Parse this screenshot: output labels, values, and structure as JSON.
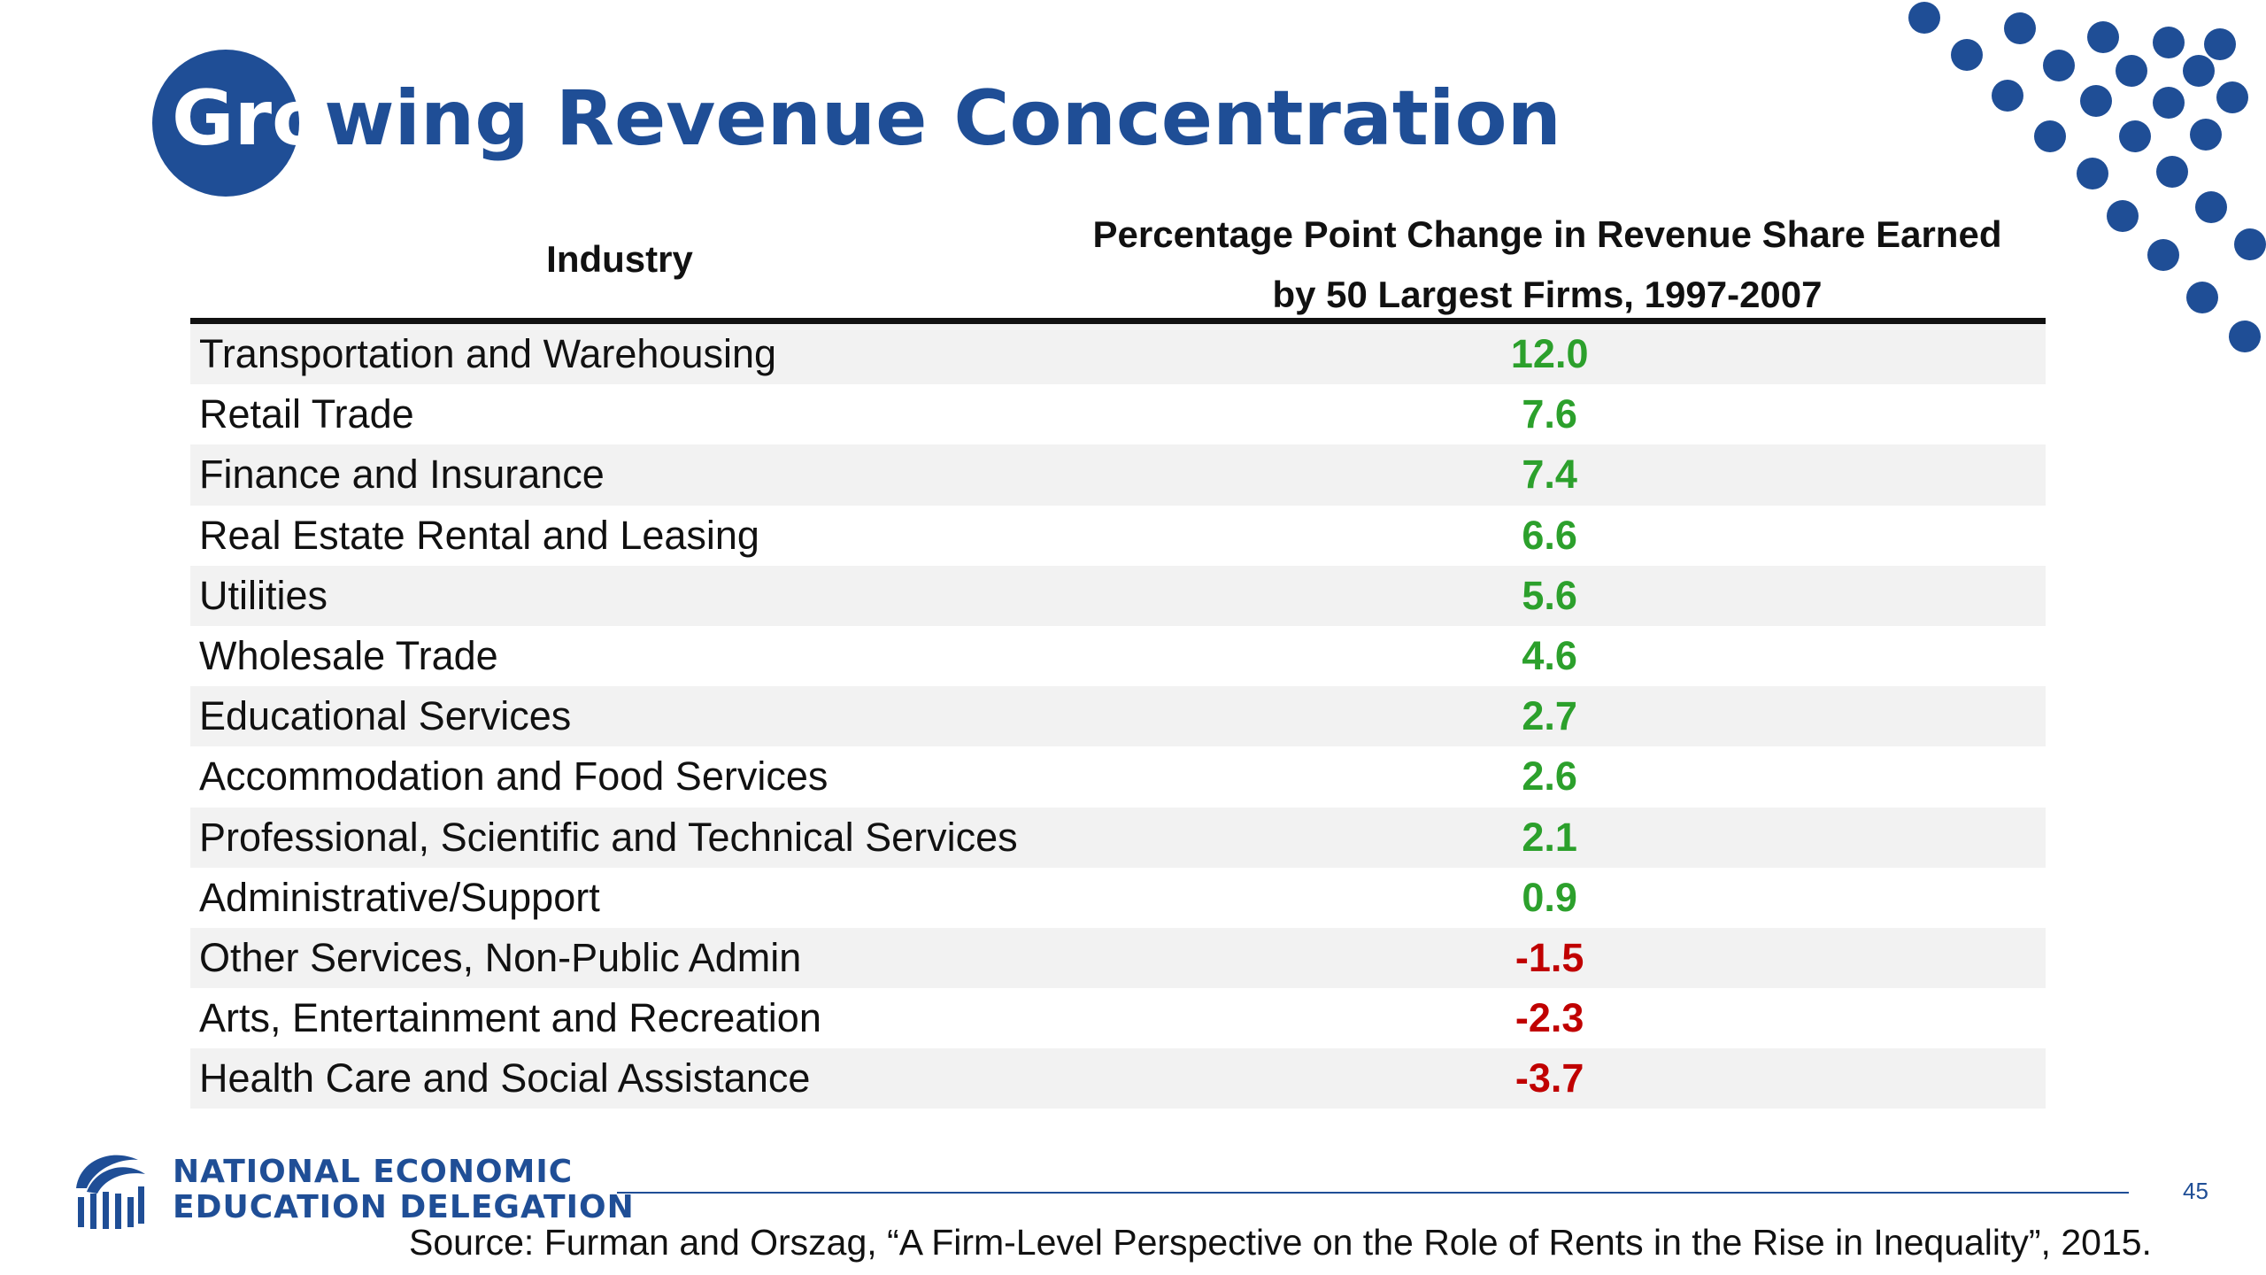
{
  "title": {
    "lead": "Gro",
    "rest": "wing Revenue Concentration"
  },
  "table": {
    "headers": {
      "industry": "Industry",
      "change_line1": "Percentage Point Change in Revenue Share Earned",
      "change_line2": "by 50 Largest Firms, 1997-2007"
    },
    "rows": [
      {
        "industry": "Transportation and Warehousing",
        "value": "12.0",
        "sign": "pos"
      },
      {
        "industry": "Retail Trade",
        "value": "7.6",
        "sign": "pos"
      },
      {
        "industry": "Finance and Insurance",
        "value": "7.4",
        "sign": "pos"
      },
      {
        "industry": "Real Estate Rental and Leasing",
        "value": "6.6",
        "sign": "pos"
      },
      {
        "industry": "Utilities",
        "value": "5.6",
        "sign": "pos"
      },
      {
        "industry": "Wholesale Trade",
        "value": "4.6",
        "sign": "pos"
      },
      {
        "industry": "Educational Services",
        "value": "2.7",
        "sign": "pos"
      },
      {
        "industry": "Accommodation and Food Services",
        "value": "2.6",
        "sign": "pos"
      },
      {
        "industry": "Professional, Scientific and Technical Services",
        "value": "2.1",
        "sign": "pos"
      },
      {
        "industry": "Administrative/Support",
        "value": "0.9",
        "sign": "pos"
      },
      {
        "industry": "Other Services, Non-Public Admin",
        "value": "-1.5",
        "sign": "neg"
      },
      {
        "industry": "Arts, Entertainment and Recreation",
        "value": "-2.3",
        "sign": "neg"
      },
      {
        "industry": "Health Care and Social Assistance",
        "value": "-3.7",
        "sign": "neg"
      }
    ]
  },
  "footer": {
    "org_line1": "NATIONAL ECONOMIC",
    "org_line2": "EDUCATION DELEGATION",
    "page_number": "45",
    "source": "Source: Furman and Orszag, “A Firm-Level Perspective on the Role of Rents in the Rise in Inequality”, 2015."
  },
  "colors": {
    "brand": "#1f4e96",
    "positive": "#2ca02c",
    "negative": "#c00000",
    "row_stripe": "#f2f2f2"
  },
  "icons": {
    "logo": "building-columns-logo-icon",
    "decoration": "dot-pattern-icon"
  }
}
